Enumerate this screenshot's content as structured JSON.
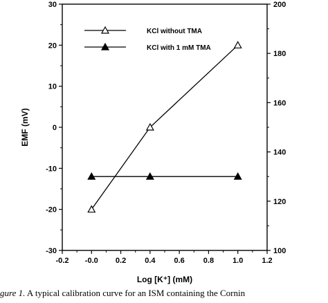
{
  "chart_data": {
    "type": "line",
    "title": "",
    "xlabel": "Log [K⁺]   (mM)",
    "ylabel": "EMF   (mV)",
    "xlim": [
      -0.2,
      1.2
    ],
    "ylim": [
      -30,
      30
    ],
    "y2lim": [
      100,
      200
    ],
    "x_ticks": [
      "-0.2",
      "-0.0",
      "0.2",
      "0.4",
      "0.6",
      "0.8",
      "1.0",
      "1.2"
    ],
    "y_ticks": [
      "-30",
      "-20",
      "-10",
      "0",
      "10",
      "20",
      "30"
    ],
    "y2_ticks": [
      "100",
      "120",
      "140",
      "160",
      "180",
      "200"
    ],
    "grid": false,
    "legend_position": "top-left",
    "series": [
      {
        "name": "KCl without TMA",
        "marker": "open-triangle",
        "x": [
          0.0,
          0.4,
          1.0
        ],
        "y": [
          -20,
          0,
          20
        ]
      },
      {
        "name": "KCl with 1 mM TMA",
        "marker": "filled-triangle",
        "x": [
          0.0,
          0.4,
          1.0
        ],
        "y": [
          -12,
          -12,
          -12
        ]
      }
    ]
  },
  "caption": {
    "figure_label": "gure 1.",
    "text": "A typical calibration curve for an ISM containing the Cornin"
  }
}
